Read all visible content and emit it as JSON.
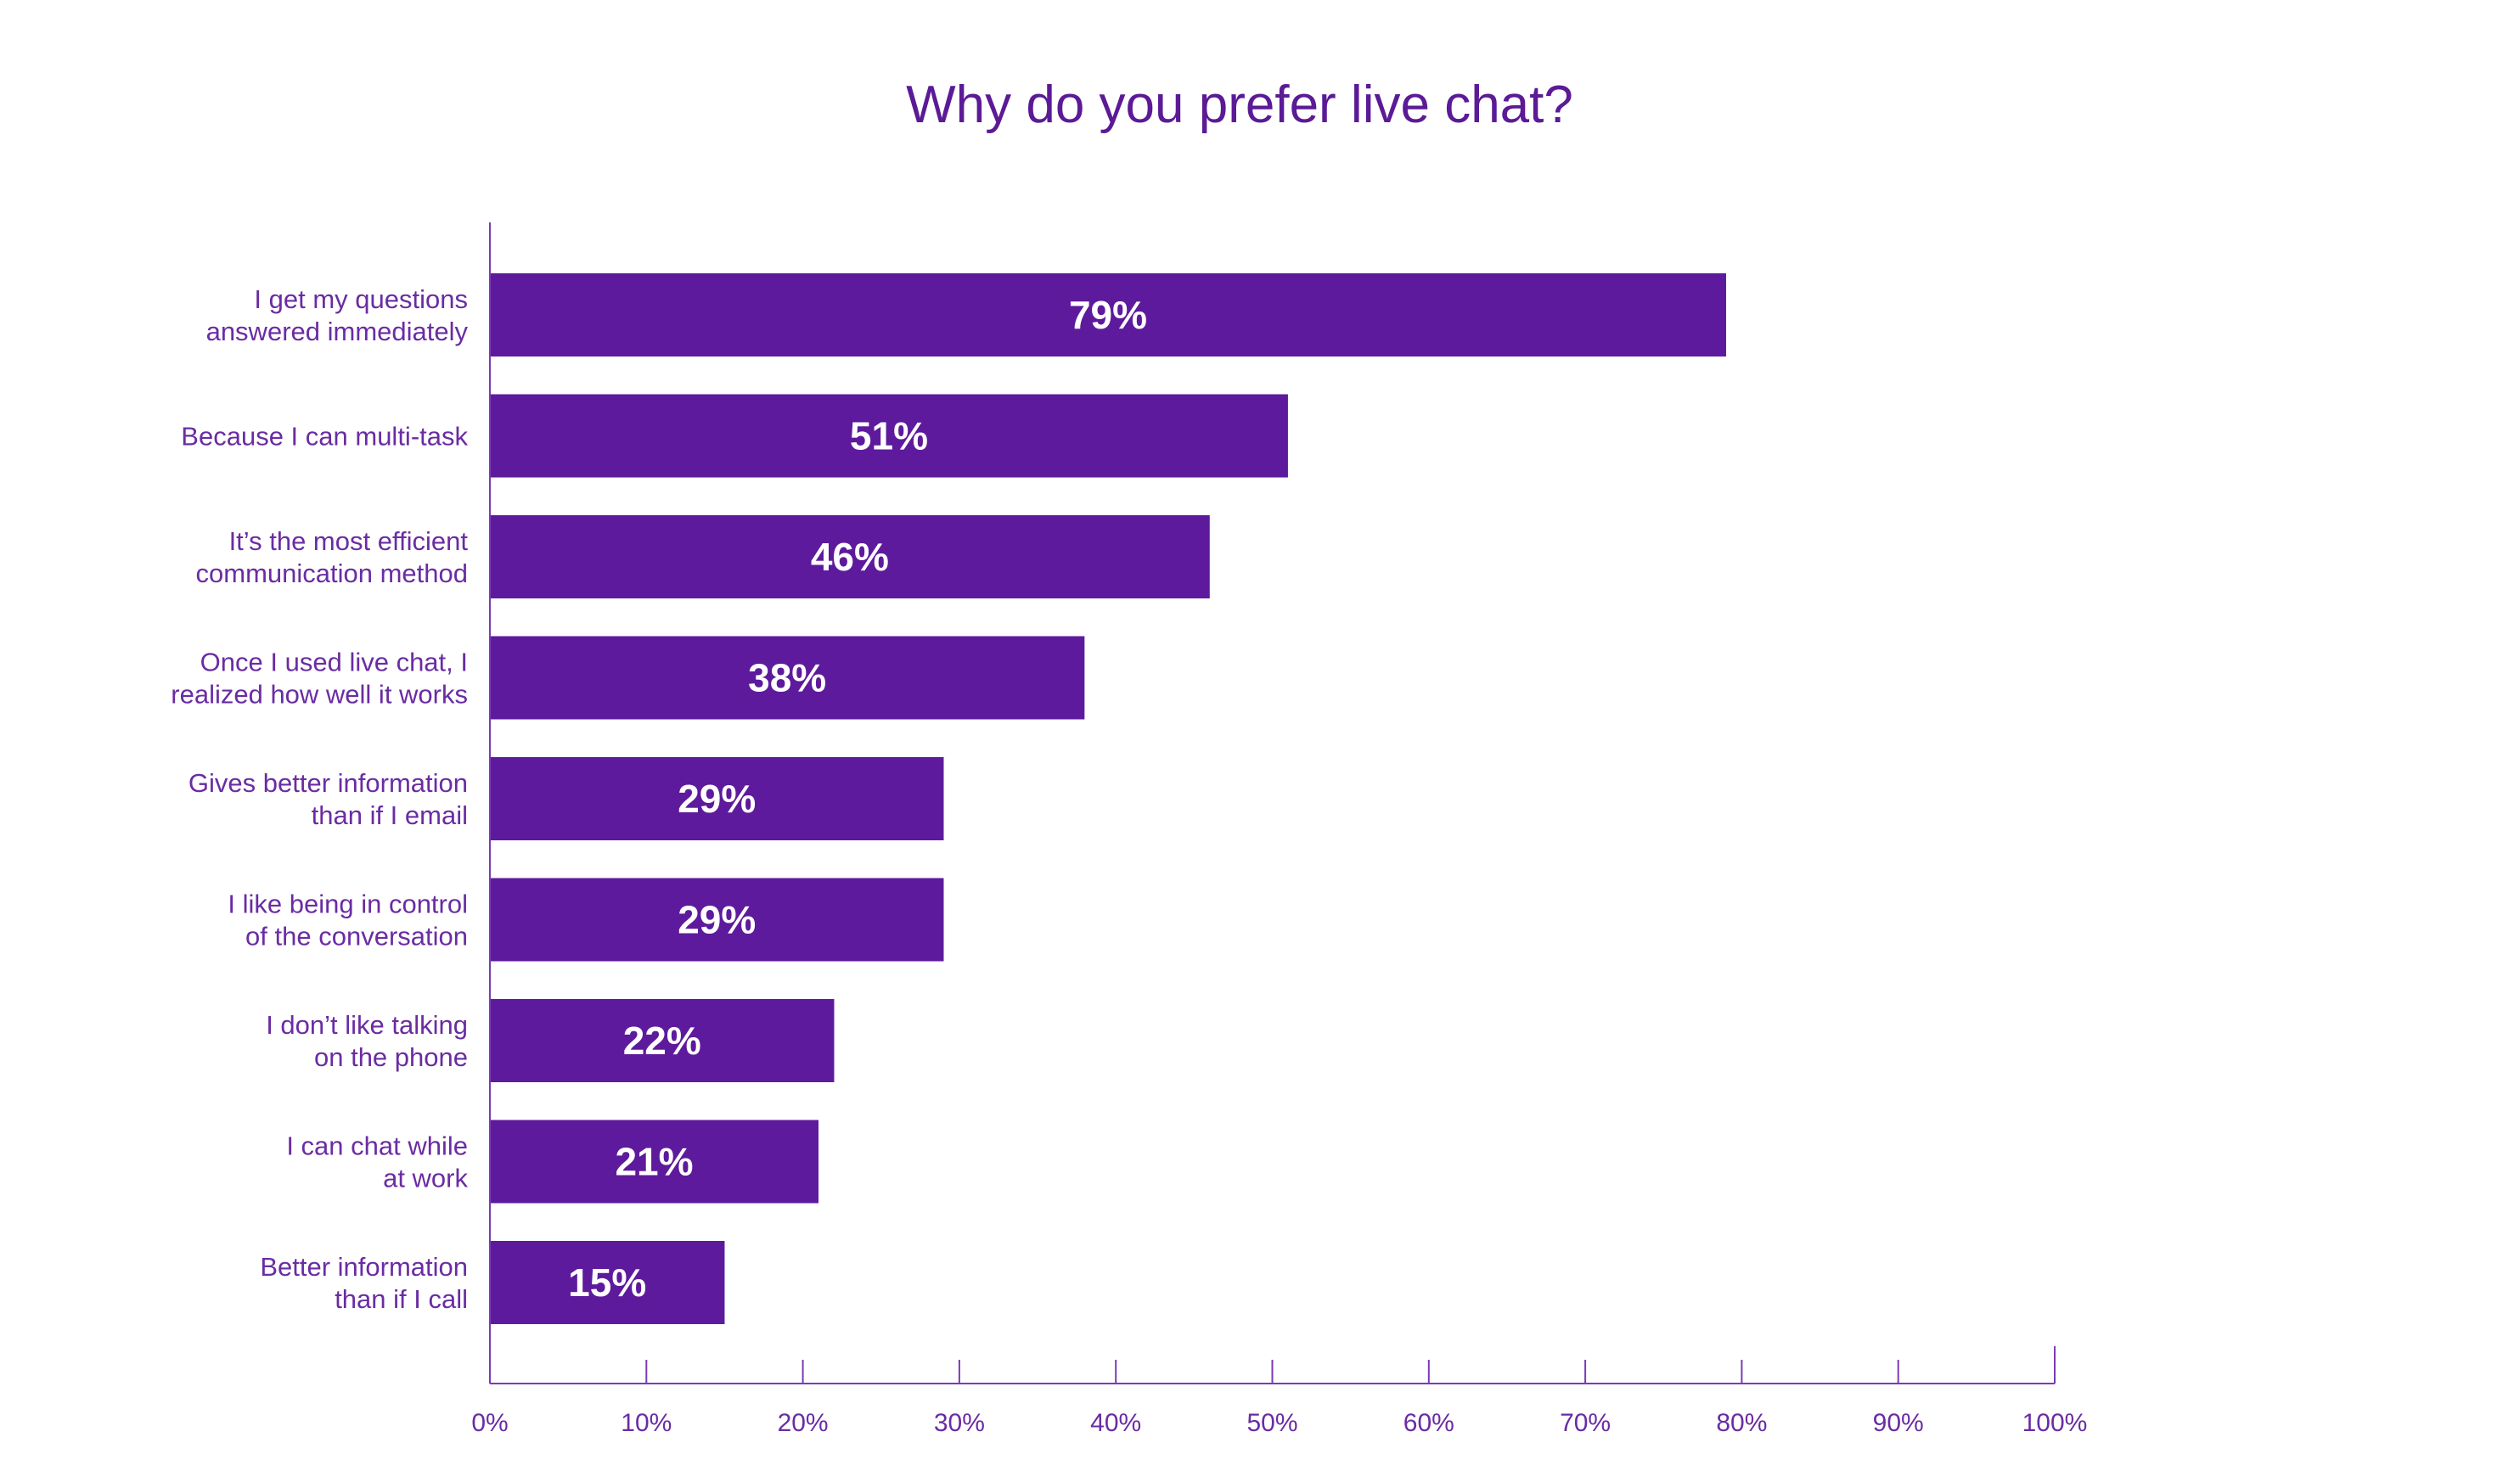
{
  "chart_data": {
    "type": "bar",
    "orientation": "horizontal",
    "title": "Why do you prefer live chat?",
    "categories": [
      [
        "I get my questions",
        "answered immediately"
      ],
      [
        "Because I can multi-task"
      ],
      [
        "It’s the most efficient",
        "communication method"
      ],
      [
        "Once I used live chat, I",
        "realized how well it works"
      ],
      [
        "Gives better information",
        "than if I email"
      ],
      [
        "I like being in control",
        "of the conversation"
      ],
      [
        "I don’t like talking",
        "on the phone"
      ],
      [
        "I can chat while",
        "at work"
      ],
      [
        "Better information",
        "than if I call"
      ]
    ],
    "values": [
      79,
      51,
      46,
      38,
      29,
      29,
      22,
      21,
      15
    ],
    "value_labels": [
      "79%",
      "51%",
      "46%",
      "38%",
      "29%",
      "29%",
      "22%",
      "21%",
      "15%"
    ],
    "xlim": [
      0,
      100
    ],
    "xticks": [
      "0%",
      "10%",
      "20%",
      "30%",
      "40%",
      "50%",
      "60%",
      "70%",
      "80%",
      "90%",
      "100%"
    ],
    "grid": false,
    "legend": "none",
    "bar_color": "#5e1a9c",
    "axis_color": "#7a3bb5"
  }
}
